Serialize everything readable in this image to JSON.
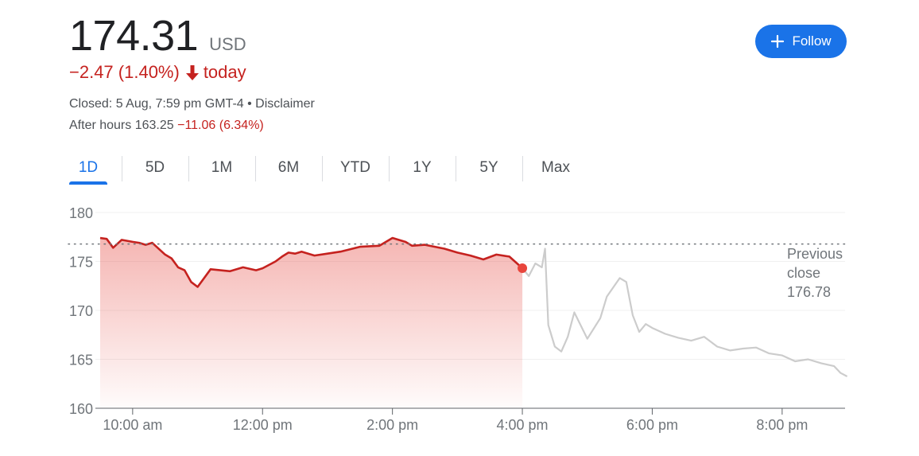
{
  "quote": {
    "price": "174.31",
    "currency": "USD",
    "change": "−2.47 (1.40%)",
    "change_period": "today",
    "closed_text": "Closed: 5 Aug, 7:59 pm GMT-4 • Disclaimer",
    "after_hours_label": "After hours 163.25",
    "after_hours_change": "−11.06 (6.34%)"
  },
  "follow_button": {
    "label": "Follow"
  },
  "tabs": [
    "1D",
    "5D",
    "1M",
    "6M",
    "YTD",
    "1Y",
    "5Y",
    "Max"
  ],
  "active_tab": "1D",
  "colors": {
    "negative": "#c5221f",
    "accent": "#1a73e8",
    "after_hours_line": "#cccccc",
    "text": "#202124"
  },
  "chart_data": {
    "type": "line",
    "y_ticks": [
      "180",
      "175",
      "170",
      "165",
      "160"
    ],
    "x_ticks": [
      "10:00 am",
      "12:00 pm",
      "2:00 pm",
      "4:00 pm",
      "6:00 pm",
      "8:00 pm"
    ],
    "ylim": [
      160,
      180
    ],
    "xlim_hours": [
      9.5,
      21.0
    ],
    "previous_close": {
      "label_lines": [
        "Previous",
        "close",
        "176.78"
      ],
      "value": 176.78
    },
    "grid": true,
    "series": [
      {
        "session": "regular",
        "color": "#c5221f",
        "x": [
          9.5,
          9.6,
          9.7,
          9.83,
          10.0,
          10.1,
          10.2,
          10.3,
          10.5,
          10.6,
          10.7,
          10.8,
          10.9,
          11.0,
          11.2,
          11.5,
          11.7,
          11.9,
          12.0,
          12.2,
          12.3,
          12.4,
          12.5,
          12.6,
          12.8,
          13.0,
          13.2,
          13.5,
          13.8,
          14.0,
          14.2,
          14.3,
          14.5,
          14.8,
          15.0,
          15.2,
          15.4,
          15.6,
          15.8,
          16.0
        ],
        "y": [
          177.4,
          177.3,
          176.4,
          177.2,
          177.0,
          176.9,
          176.7,
          176.9,
          175.7,
          175.3,
          174.4,
          174.1,
          172.9,
          172.4,
          174.2,
          174.0,
          174.4,
          174.1,
          174.3,
          175.0,
          175.5,
          175.9,
          175.8,
          176.0,
          175.6,
          175.8,
          176.0,
          176.5,
          176.6,
          177.4,
          177.0,
          176.6,
          176.7,
          176.3,
          175.9,
          175.6,
          175.2,
          175.7,
          175.5,
          174.31
        ]
      },
      {
        "session": "after_hours",
        "color": "#cccccc",
        "x": [
          16.0,
          16.1,
          16.2,
          16.3,
          16.35,
          16.4,
          16.5,
          16.6,
          16.7,
          16.8,
          17.0,
          17.2,
          17.3,
          17.5,
          17.6,
          17.7,
          17.8,
          17.9,
          18.0,
          18.2,
          18.4,
          18.6,
          18.8,
          19.0,
          19.2,
          19.4,
          19.6,
          19.8,
          20.0,
          20.2,
          20.4,
          20.6,
          20.8,
          20.9,
          21.0
        ],
        "y": [
          174.31,
          173.5,
          174.8,
          174.4,
          176.3,
          168.5,
          166.3,
          165.8,
          167.3,
          169.8,
          167.1,
          169.2,
          171.4,
          173.3,
          172.9,
          169.5,
          167.8,
          168.6,
          168.2,
          167.6,
          167.2,
          166.9,
          167.3,
          166.3,
          165.9,
          166.1,
          166.2,
          165.6,
          165.4,
          164.8,
          165.0,
          164.6,
          164.3,
          163.6,
          163.25
        ]
      }
    ]
  }
}
